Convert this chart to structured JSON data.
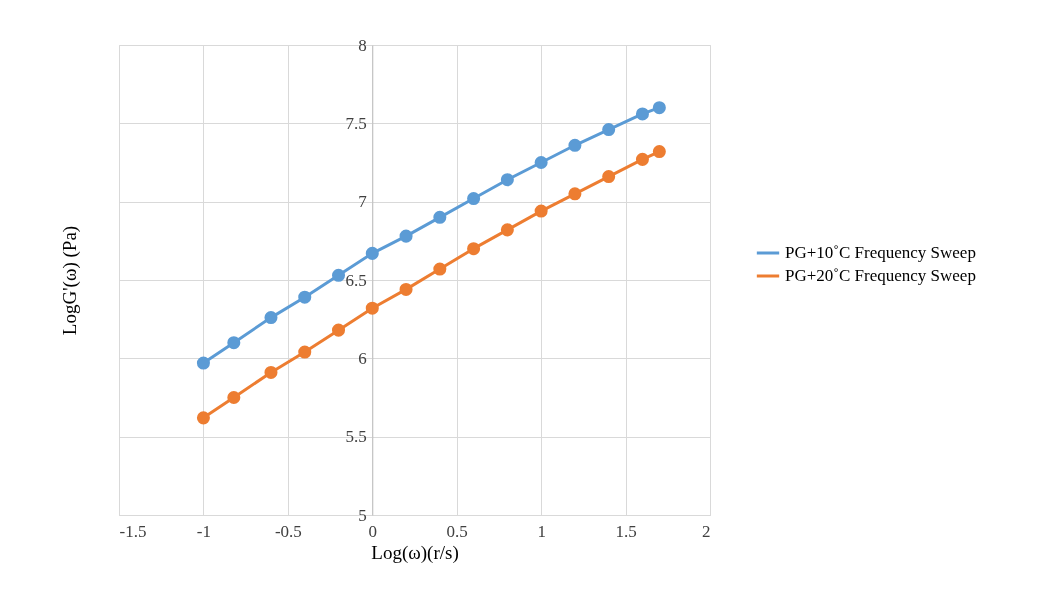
{
  "chart_data": {
    "type": "line",
    "xlabel": "Log(ω)(r/s)",
    "ylabel": "LogG'(ω) (Pa)",
    "x": [
      -1,
      -0.82,
      -0.6,
      -0.4,
      -0.2,
      0,
      0.2,
      0.4,
      0.6,
      0.8,
      1,
      1.2,
      1.4,
      1.6,
      1.7
    ],
    "series": [
      {
        "name": "PG+10˚C Frequency Sweep",
        "color": "#5b9bd5",
        "values": [
          5.97,
          6.1,
          6.26,
          6.39,
          6.53,
          6.67,
          6.78,
          6.9,
          7.02,
          7.14,
          7.25,
          7.36,
          7.46,
          7.56,
          7.6
        ]
      },
      {
        "name": "PG+20˚C Frequency Sweep",
        "color": "#ed7d31",
        "values": [
          5.62,
          5.75,
          5.91,
          6.04,
          6.18,
          6.32,
          6.44,
          6.57,
          6.7,
          6.82,
          6.94,
          7.05,
          7.16,
          7.27,
          7.32
        ]
      }
    ],
    "xlim": [
      -1.5,
      2
    ],
    "xticks": [
      -1.5,
      -1,
      -0.5,
      0,
      0.5,
      1,
      1.5,
      2
    ],
    "ylim": [
      5,
      8
    ],
    "yticks": [
      5,
      5.5,
      6,
      6.5,
      7,
      7.5,
      8
    ],
    "grid": true,
    "legend": "right",
    "marker": "circle",
    "line_style": "solid"
  }
}
